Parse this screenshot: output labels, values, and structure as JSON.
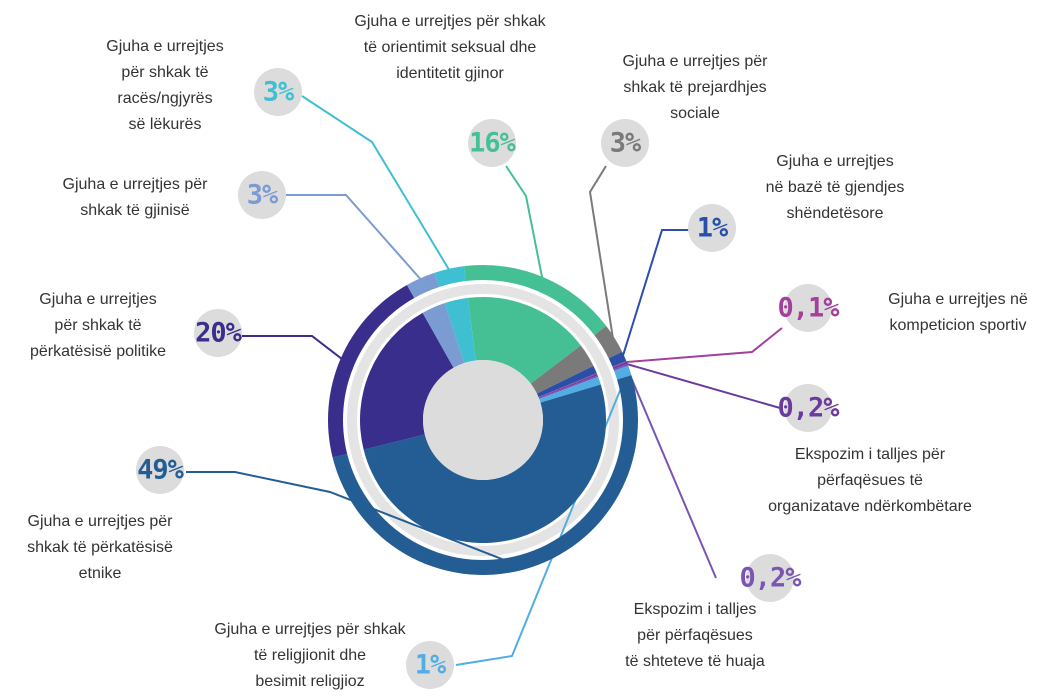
{
  "chart_data": {
    "type": "donut",
    "categories": [
      [
        "Gjuha e urrejtjes për shkak",
        "të orientimit seksual dhe",
        "identitetit gjinor"
      ],
      [
        "Gjuha e urrejtjes për",
        "shkak të prejardhjes",
        "sociale"
      ],
      [
        "Gjuha e urrejtjes",
        "në bazë të gjendjes",
        "shëndetësore"
      ],
      [
        "Gjuha e urrejtjes në",
        "kompeticion sportiv"
      ],
      [
        "Ekspozim i talljes për",
        "përfaqësues të",
        "organizatave ndërkombëtare"
      ],
      [
        "Ekspozim i talljes",
        "për përfaqësues",
        "të shteteve të huaja"
      ],
      [
        "Gjuha e urrejtjes për shkak",
        "të religjionit dhe",
        "besimit religjioz"
      ],
      [
        "Gjuha e urrejtjes për",
        "shkak të përkatësisë",
        "etnike"
      ],
      [
        "Gjuha e urrejtjes",
        "për shkak të",
        "përkatësisë politike"
      ],
      [
        "Gjuha e urrejtjes për",
        "shkak të gjinisë"
      ],
      [
        "Gjuha e urrejtjes",
        "për shkak të",
        "racës/ngjyrës",
        "së lëkurës"
      ]
    ],
    "values": [
      16,
      3,
      1,
      0.1,
      0.2,
      0.2,
      1,
      49,
      20,
      3,
      3
    ],
    "value_labels": [
      "16%",
      "3%",
      "1%",
      "0,1%",
      "0,2%",
      "0,2%",
      "1%",
      "49%",
      "20%",
      "3%",
      "3%"
    ],
    "colors": [
      "#45c095",
      "#7a7a7a",
      "#2a4fa8",
      "#a2409c",
      "#6a3a9e",
      "#7a55b3",
      "#52ade3",
      "#235d94",
      "#3a2e8c",
      "#7b9bd3",
      "#3fbfd2"
    ]
  }
}
